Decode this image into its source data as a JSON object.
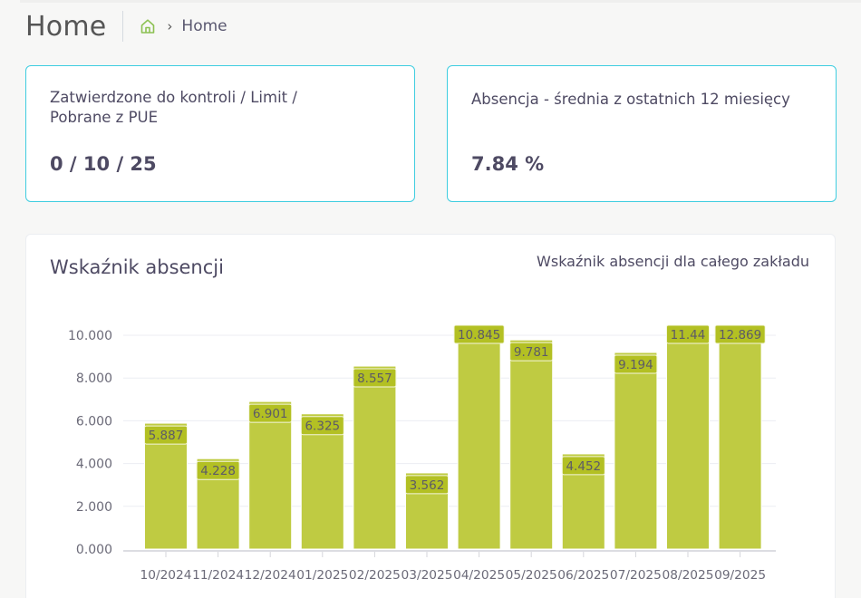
{
  "header": {
    "title": "Home",
    "breadcrumb": {
      "home_icon": "home-icon",
      "separator": "›",
      "current": "Home"
    }
  },
  "cards": [
    {
      "label_line1": "Zatwierdzone do kontroli / Limit /",
      "label_line2": "Pobrane z PUE",
      "value": "0 / 10 / 25"
    },
    {
      "label_line1": "Absencja - średnia z ostatnich 12 miesięcy",
      "value": "7.84 %"
    }
  ],
  "panel": {
    "title": "Wskaźnik absencji",
    "subtitle": "Wskaźnik absencji dla całego zakładu"
  },
  "colors": {
    "bar": "#bfcb42",
    "bar_label_bg": "#b3c023",
    "card_border": "#3fcde0",
    "home_icon": "#8cc152",
    "text": "#4e4a63"
  },
  "chart_data": {
    "type": "bar",
    "title": "Wskaźnik absencji",
    "subtitle": "Wskaźnik absencji dla całego zakładu",
    "xlabel": "",
    "ylabel": "",
    "categories": [
      "10/2024",
      "11/2024",
      "12/2024",
      "01/2025",
      "02/2025",
      "03/2025",
      "04/2025",
      "05/2025",
      "06/2025",
      "07/2025",
      "08/2025",
      "09/2025"
    ],
    "values": [
      5.887,
      4.228,
      6.901,
      6.325,
      8.557,
      3.562,
      10.845,
      9.781,
      4.452,
      9.194,
      11.44,
      12.869
    ],
    "value_labels": [
      "5.887",
      "4.228",
      "6.901",
      "6.325",
      "8.557",
      "3.562",
      "10.845",
      "9.781",
      "4.452",
      "9.194",
      "11.44",
      "12.869"
    ],
    "yticks": [
      "0.000",
      "2.000",
      "4.000",
      "6.000",
      "8.000",
      "10.000"
    ],
    "ytick_values": [
      0,
      2,
      4,
      6,
      8,
      10
    ],
    "ylim": [
      0,
      10.5
    ],
    "grid": true,
    "legend": null
  }
}
